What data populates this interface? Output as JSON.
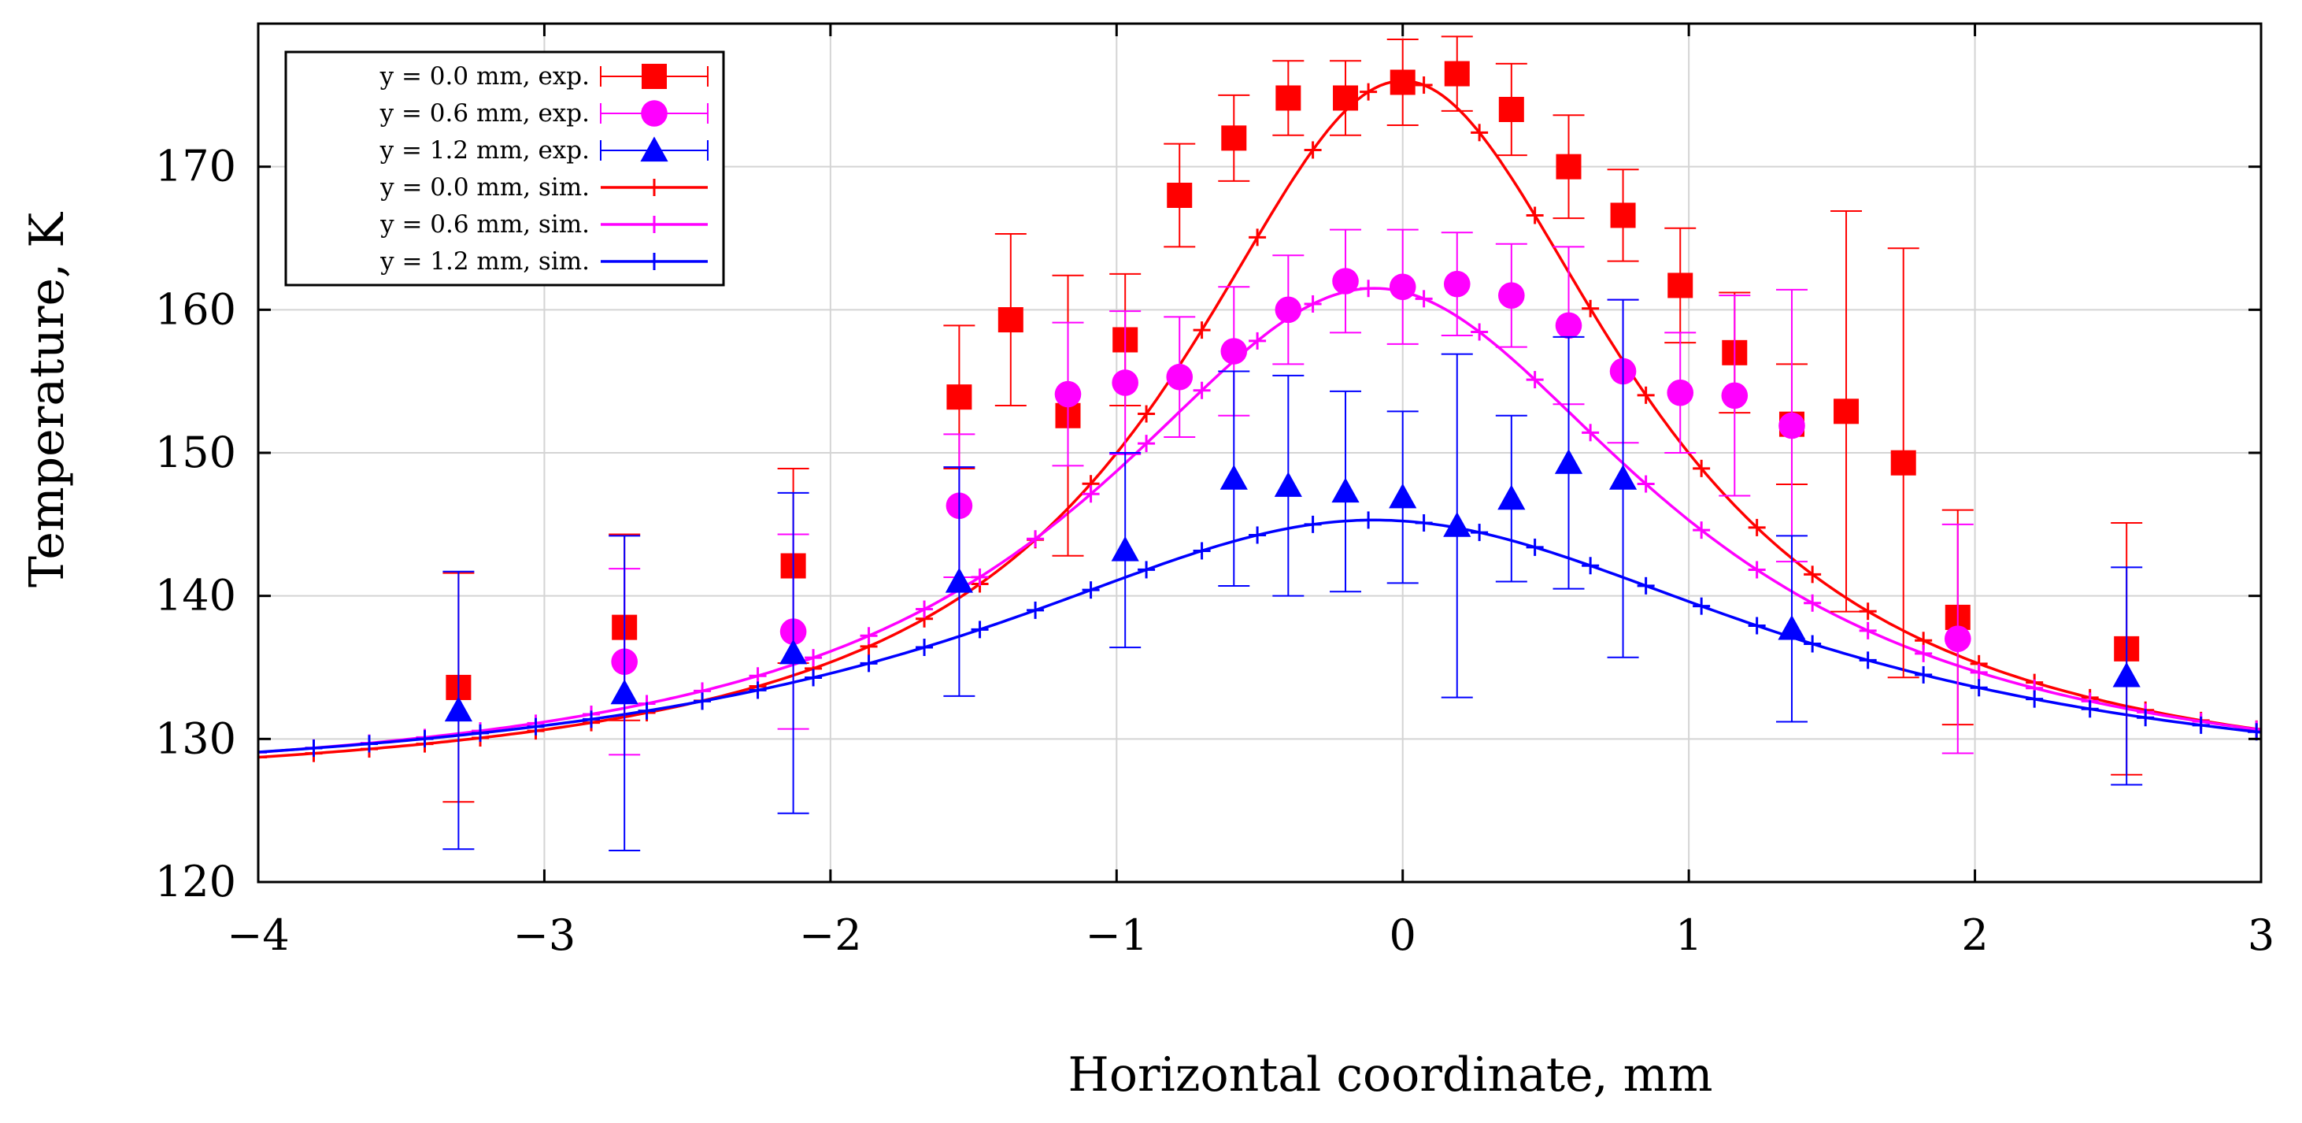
{
  "chart_data": {
    "type": "scatter",
    "title": "",
    "xlabel": "Horizontal coordinate, mm",
    "ylabel": "Temperature, K",
    "xlim": [
      -4,
      3
    ],
    "ylim": [
      120,
      180
    ],
    "xticks": [
      -4,
      -3,
      -2,
      -1,
      0,
      1,
      2,
      3
    ],
    "yticks": [
      120,
      130,
      140,
      150,
      160,
      170
    ],
    "xtick_labels": [
      "−4",
      "−3",
      "−2",
      "−1",
      "0",
      "1",
      "2",
      "3"
    ],
    "ytick_labels": [
      "120",
      "130",
      "140",
      "150",
      "160",
      "170"
    ],
    "grid": true,
    "legend_position": "top-left",
    "series": [
      {
        "name": "y = 0.0 mm, exp.",
        "kind": "errorbar",
        "marker": "square",
        "color": "#ff0000",
        "x": [
          -3.3,
          -2.72,
          -2.13,
          -1.55,
          -1.37,
          -1.17,
          -0.97,
          -0.78,
          -0.59,
          -0.4,
          -0.2,
          0.0,
          0.19,
          0.38,
          0.58,
          0.77,
          0.97,
          1.16,
          1.36,
          1.55,
          1.75,
          1.94,
          2.53
        ],
        "y": [
          133.6,
          137.8,
          142.1,
          153.9,
          159.3,
          152.6,
          157.9,
          168.0,
          172.0,
          174.8,
          174.8,
          175.9,
          176.5,
          174.0,
          170.0,
          166.6,
          161.7,
          157.0,
          152.0,
          152.9,
          149.3,
          138.5,
          136.3
        ],
        "y_err": [
          8.0,
          6.5,
          6.8,
          5.0,
          6.0,
          9.8,
          4.6,
          3.6,
          3.0,
          2.6,
          2.6,
          3.0,
          2.6,
          3.2,
          3.6,
          3.2,
          4.0,
          4.2,
          4.2,
          14.0,
          15.0,
          7.5,
          8.8
        ]
      },
      {
        "name": "y = 0.6 mm, exp.",
        "kind": "errorbar",
        "marker": "circle",
        "color": "#ff00ff",
        "x": [
          -2.72,
          -2.13,
          -1.55,
          -1.17,
          -0.97,
          -0.78,
          -0.59,
          -0.4,
          -0.2,
          0.0,
          0.19,
          0.38,
          0.58,
          0.77,
          0.97,
          1.16,
          1.36,
          1.94
        ],
        "y": [
          135.4,
          137.5,
          146.3,
          154.1,
          154.9,
          155.3,
          157.1,
          160.0,
          162.0,
          161.6,
          161.8,
          161.0,
          158.9,
          155.7,
          154.2,
          154.0,
          151.9,
          137.0
        ],
        "y_err": [
          6.5,
          6.8,
          5.0,
          5.0,
          5.0,
          4.2,
          4.5,
          3.8,
          3.6,
          4.0,
          3.6,
          3.6,
          5.5,
          5.0,
          4.2,
          7.0,
          9.5,
          8.0
        ]
      },
      {
        "name": "y = 1.2 mm, exp.",
        "kind": "errorbar",
        "marker": "triangle",
        "color": "#0000ff",
        "x": [
          -3.3,
          -2.72,
          -2.13,
          -1.55,
          -0.97,
          -0.59,
          -0.4,
          -0.2,
          0.0,
          0.19,
          0.38,
          0.58,
          0.77,
          1.36,
          2.53
        ],
        "y": [
          132.0,
          133.2,
          136.0,
          141.0,
          143.2,
          148.2,
          147.7,
          147.3,
          146.9,
          144.9,
          146.8,
          149.3,
          148.2,
          137.7,
          134.4
        ],
        "y_err": [
          9.7,
          11.0,
          11.2,
          8.0,
          6.8,
          7.5,
          7.7,
          7.0,
          6.0,
          12.0,
          5.8,
          8.8,
          12.5,
          6.5,
          7.6
        ]
      },
      {
        "name": "y = 0.0 mm, sim.",
        "kind": "line",
        "color": "#ff0000",
        "peak": 176.0,
        "base": 126.0,
        "center": 0.0,
        "width": 0.96
      },
      {
        "name": "y = 0.6 mm, sim.",
        "kind": "line",
        "color": "#ff00ff",
        "peak": 161.5,
        "base": 126.0,
        "center": -0.1,
        "width": 1.2
      },
      {
        "name": "y = 1.2 mm, sim.",
        "kind": "line",
        "color": "#0000ff",
        "peak": 145.3,
        "base": 126.0,
        "center": -0.1,
        "width": 1.7
      }
    ]
  }
}
